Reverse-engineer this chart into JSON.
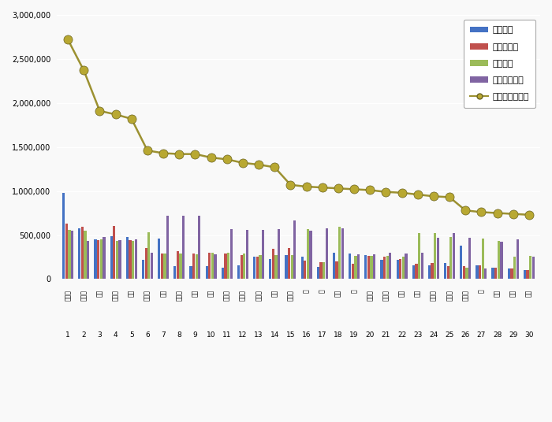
{
  "ranks": [
    1,
    2,
    3,
    4,
    5,
    6,
    7,
    8,
    9,
    10,
    11,
    12,
    13,
    14,
    15,
    16,
    17,
    18,
    19,
    20,
    21,
    22,
    23,
    24,
    25,
    26,
    27,
    28,
    29,
    30
  ],
  "x_labels": [
    "김재석",
    "이찬원",
    "소유",
    "이영지",
    "이기",
    "유현주",
    "천아",
    "양세찬",
    "수요",
    "미르",
    "권진아",
    "구나이",
    "이나은",
    "태양",
    "이현도",
    "하",
    "아",
    "에일",
    "이",
    "박도근",
    "김도훈",
    "수리",
    "전구",
    "박나래",
    "이수근",
    "이진아",
    "이",
    "지인",
    "자주",
    "제이"
  ],
  "participation": [
    980000,
    580000,
    450000,
    490000,
    480000,
    220000,
    460000,
    150000,
    150000,
    150000,
    130000,
    160000,
    250000,
    230000,
    270000,
    250000,
    140000,
    300000,
    290000,
    270000,
    220000,
    220000,
    160000,
    160000,
    180000,
    380000,
    160000,
    130000,
    120000,
    100000
  ],
  "media": [
    630000,
    590000,
    440000,
    600000,
    440000,
    350000,
    290000,
    320000,
    290000,
    300000,
    290000,
    275000,
    250000,
    340000,
    350000,
    210000,
    195000,
    200000,
    175000,
    260000,
    250000,
    230000,
    170000,
    185000,
    150000,
    150000,
    160000,
    130000,
    120000,
    105000
  ],
  "communication": [
    560000,
    550000,
    450000,
    430000,
    430000,
    530000,
    290000,
    290000,
    285000,
    295000,
    300000,
    290000,
    270000,
    270000,
    270000,
    570000,
    190000,
    590000,
    260000,
    260000,
    265000,
    250000,
    520000,
    520000,
    480000,
    130000,
    460000,
    430000,
    250000,
    260000
  ],
  "community": [
    550000,
    430000,
    480000,
    440000,
    450000,
    300000,
    720000,
    720000,
    720000,
    280000,
    570000,
    560000,
    560000,
    570000,
    670000,
    550000,
    580000,
    580000,
    285000,
    280000,
    300000,
    290000,
    300000,
    470000,
    520000,
    465000,
    120000,
    420000,
    450000,
    250000
  ],
  "brand_reputation": [
    2720000,
    2370000,
    1910000,
    1870000,
    1820000,
    1460000,
    1430000,
    1420000,
    1420000,
    1380000,
    1360000,
    1320000,
    1300000,
    1270000,
    1070000,
    1050000,
    1040000,
    1030000,
    1020000,
    1010000,
    990000,
    980000,
    960000,
    940000,
    930000,
    780000,
    760000,
    750000,
    740000,
    730000
  ],
  "bar_colors": {
    "participation": "#4472c4",
    "media": "#c0504d",
    "communication": "#9bbb59",
    "community": "#8064a2"
  },
  "line_color": "#9c9131",
  "marker_face": "#b8a832",
  "marker_edge": "#6b6422",
  "ylim": [
    0,
    3000000
  ],
  "yticks": [
    0,
    500000,
    1000000,
    1500000,
    2000000,
    2500000,
    3000000
  ],
  "bg_color": "#f9f9f9",
  "plot_bg": "#f9f9f9",
  "legend_labels": [
    "참여지수",
    "미디어지수",
    "소통지수",
    "커뮤니티지수",
    "브랜드평판지수"
  ]
}
